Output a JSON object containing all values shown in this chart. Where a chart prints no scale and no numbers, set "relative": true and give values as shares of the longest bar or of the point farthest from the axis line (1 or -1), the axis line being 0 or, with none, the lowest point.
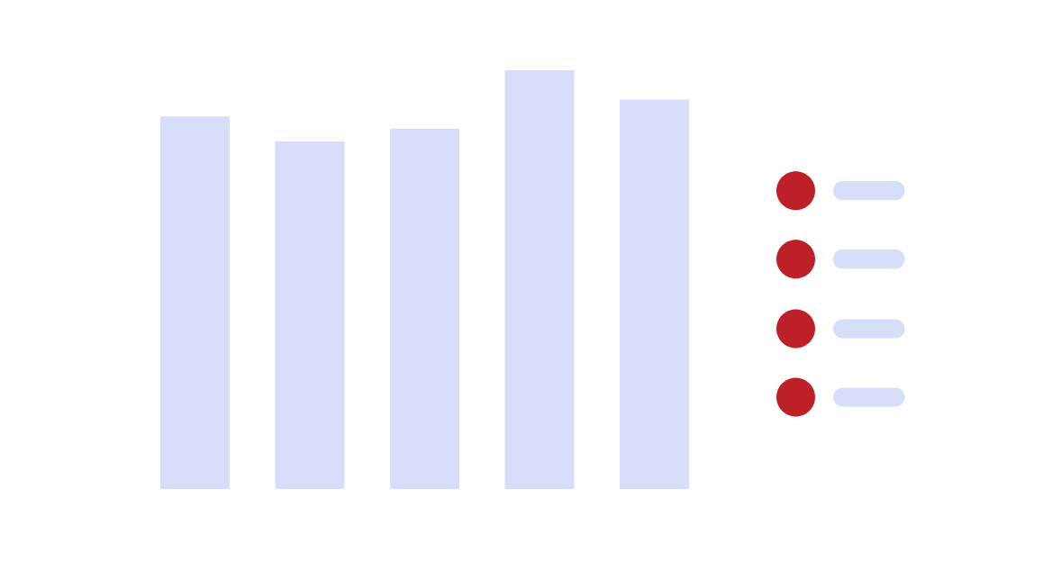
{
  "chart_data": {
    "type": "bar",
    "categories": [
      null,
      null,
      null,
      null,
      null
    ],
    "values": [
      0.89,
      0.83,
      0.86,
      1.0,
      0.93
    ],
    "color": "#d6defa",
    "relative": true
  }
}
